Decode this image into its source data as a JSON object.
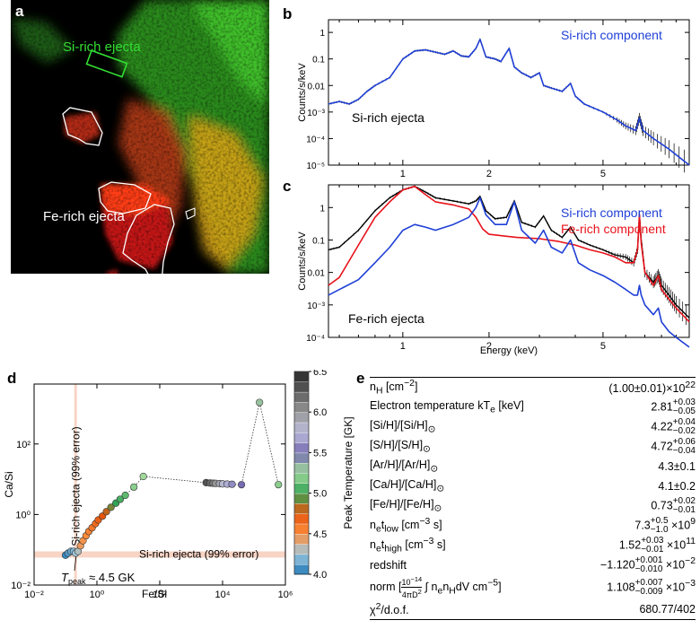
{
  "panel_a": {
    "letter": "a",
    "si_label": "Si-rich ejecta",
    "fe_label": "Fe-rich ejecta"
  },
  "panel_b": {
    "letter": "b",
    "ylabel": "Counts/s/keV",
    "region_label": "Si-rich ejecta",
    "legend": "Si-rich component",
    "yticks": [
      "1",
      "0.1",
      "0.01",
      "10⁻³",
      "10⁻⁴",
      "10⁻⁵"
    ],
    "xticks": [
      "1",
      "2",
      "5"
    ]
  },
  "panel_c": {
    "letter": "c",
    "ylabel": "Counts/s/keV",
    "xlabel": "Energy (keV)",
    "region_label": "Fe-rich ejecta",
    "legend_si": "Si-rich component",
    "legend_fe": "Fe-rich component",
    "yticks": [
      "1",
      "0.1",
      "0.01",
      "10⁻³",
      "10⁻⁴"
    ],
    "xticks": [
      "1",
      "2",
      "5"
    ]
  },
  "panel_d": {
    "letter": "d",
    "ylabel": "Ca/Si",
    "xlabel": "Fe/Si",
    "xticks": [
      "10⁻²",
      "10⁰",
      "10²",
      "10⁴",
      "10⁶"
    ],
    "yticks": [
      "10²",
      "10⁰",
      "10⁻²"
    ],
    "vertical_band_label": "Si-rich ejecta (99% error)",
    "horizontal_band_label": "Si-rich ejecta (99% error)",
    "tpeak_label": "T",
    "tpeak_sub": "peak",
    "tpeak_value": " ≈ 4.5 GK",
    "colorbar_label": "Peak Temperature [GK]",
    "colorbar_ticks": [
      "6.5",
      "6.0",
      "5.5",
      "5.0",
      "4.5",
      "4.0"
    ]
  },
  "panel_e": {
    "letter": "e",
    "rows": [
      {
        "param": "n_H [cm⁻²]",
        "value": "(1.00±0.01)×10²²"
      },
      {
        "param": "Electron temperature kT_e [keV]",
        "value": "2.81 +0.03 −0.05"
      },
      {
        "param": "[Si/H]/[Si/H]⊙",
        "value": "4.22 +0.04 −0.02"
      },
      {
        "param": "[S/H]/[S/H]⊙",
        "value": "4.72 +0.06 −0.04"
      },
      {
        "param": "[Ar/H]/[Ar/H]⊙",
        "value": "4.3±0.1"
      },
      {
        "param": "[Ca/H]/[Ca/H]⊙",
        "value": "4.1±0.2"
      },
      {
        "param": "[Fe/H]/[Fe/H]⊙",
        "value": "0.73 +0.02 −0.01"
      },
      {
        "param": "n_e t_low [cm⁻³ s]",
        "value": "7.3 +0.5 −1.0 ×10⁹"
      },
      {
        "param": "n_e t_high [cm⁻³ s]",
        "value": "1.52 +0.03 −0.01 ×10¹¹"
      },
      {
        "param": "redshift",
        "value": "−1.120 +0.001 −0.010 ×10⁻²"
      },
      {
        "param": "norm [10⁻¹⁴/4πD² ∫ n_e n_H dV cm⁻⁵]",
        "value": "1.108 +0.007 −0.009 ×10⁻³"
      },
      {
        "param": "χ²/d.o.f.",
        "value": "680.77/402"
      }
    ]
  },
  "colors": {
    "si_blue": "#1f3fd6",
    "fe_red": "#e8131b",
    "si_green": "#33dd33"
  },
  "chart_data": [
    {
      "type": "line",
      "title": "b",
      "xlabel": "",
      "ylabel": "Counts/s/keV",
      "xscale": "log",
      "yscale": "log",
      "xlim": [
        0.55,
        10
      ],
      "ylim": [
        1e-05,
        3
      ],
      "series": [
        {
          "name": "Si-rich component",
          "x": [
            0.55,
            0.6,
            0.65,
            0.7,
            0.75,
            0.8,
            0.9,
            1.0,
            1.1,
            1.2,
            1.3,
            1.4,
            1.5,
            1.6,
            1.7,
            1.8,
            1.86,
            1.95,
            2.1,
            2.2,
            2.35,
            2.45,
            2.6,
            2.8,
            3.0,
            3.1,
            3.3,
            3.6,
            3.85,
            4.0,
            4.3,
            5.0,
            5.6,
            6.0,
            6.5,
            6.7,
            6.9,
            7.5,
            8.5,
            10.0
          ],
          "y": [
            0.002,
            0.0025,
            0.002,
            0.003,
            0.006,
            0.01,
            0.02,
            0.1,
            0.2,
            0.22,
            0.18,
            0.15,
            0.2,
            0.13,
            0.12,
            0.25,
            0.55,
            0.12,
            0.1,
            0.08,
            0.25,
            0.05,
            0.03,
            0.02,
            0.03,
            0.01,
            0.008,
            0.006,
            0.012,
            0.004,
            0.002,
            0.001,
            0.0005,
            0.0003,
            0.0002,
            0.0006,
            0.0002,
            0.0001,
            4e-05,
            1e-05
          ]
        }
      ]
    },
    {
      "type": "line",
      "title": "c",
      "xlabel": "Energy (keV)",
      "ylabel": "Counts/s/keV",
      "xscale": "log",
      "yscale": "log",
      "xlim": [
        0.55,
        10
      ],
      "ylim": [
        0.0001,
        5
      ],
      "series": [
        {
          "name": "Total",
          "x": [
            0.55,
            0.6,
            0.7,
            0.8,
            0.9,
            1.0,
            1.1,
            1.2,
            1.3,
            1.5,
            1.7,
            1.8,
            1.86,
            1.95,
            2.1,
            2.3,
            2.45,
            2.6,
            2.9,
            3.1,
            3.3,
            3.6,
            3.85,
            4.1,
            4.5,
            5.0,
            5.5,
            6.0,
            6.4,
            6.6,
            6.7,
            6.8,
            7.0,
            7.5,
            7.8,
            8.0,
            8.5,
            9.0,
            10.0
          ],
          "y": [
            0.05,
            0.06,
            0.2,
            0.8,
            2.0,
            3.5,
            4.5,
            3.0,
            2.0,
            1.6,
            1.3,
            1.6,
            2.2,
            0.8,
            0.45,
            0.5,
            1.6,
            0.35,
            0.25,
            0.55,
            0.2,
            0.12,
            0.25,
            0.1,
            0.07,
            0.05,
            0.035,
            0.03,
            0.02,
            0.05,
            0.6,
            0.1,
            0.01,
            0.005,
            0.008,
            0.004,
            0.002,
            0.001,
            0.0004
          ]
        },
        {
          "name": "Si-rich component",
          "x": [
            0.55,
            0.7,
            0.8,
            0.9,
            1.0,
            1.1,
            1.2,
            1.3,
            1.5,
            1.7,
            1.8,
            1.86,
            1.95,
            2.1,
            2.3,
            2.45,
            2.6,
            2.9,
            3.1,
            3.3,
            3.6,
            3.85,
            4.1,
            4.5,
            5.0,
            5.5,
            6.0,
            6.4,
            6.6,
            6.7,
            6.8,
            7.0,
            7.5,
            7.8,
            8.0,
            8.5,
            9.0,
            10.0
          ],
          "y": [
            0.002,
            0.006,
            0.02,
            0.06,
            0.2,
            0.3,
            0.25,
            0.2,
            0.3,
            0.5,
            1.0,
            2.0,
            0.6,
            0.3,
            0.3,
            1.5,
            0.2,
            0.08,
            0.2,
            0.06,
            0.04,
            0.1,
            0.02,
            0.012,
            0.008,
            0.005,
            0.003,
            0.002,
            0.002,
            0.004,
            0.002,
            0.001,
            0.0005,
            0.0008,
            0.0003,
            0.00015,
            0.0001,
            5e-05
          ]
        },
        {
          "name": "Fe-rich component",
          "x": [
            0.55,
            0.6,
            0.7,
            0.8,
            0.9,
            1.0,
            1.1,
            1.2,
            1.3,
            1.5,
            1.7,
            1.8,
            1.9,
            2.0,
            2.3,
            2.5,
            3.0,
            3.5,
            4.0,
            4.5,
            5.0,
            5.5,
            6.0,
            6.4,
            6.6,
            6.7,
            6.8,
            7.0,
            7.5,
            7.8,
            8.0,
            8.5,
            9.0,
            10.0
          ],
          "y": [
            0.004,
            0.007,
            0.07,
            0.5,
            1.5,
            3.5,
            4.5,
            2.5,
            1.5,
            1.2,
            0.9,
            0.5,
            0.22,
            0.15,
            0.13,
            0.12,
            0.11,
            0.09,
            0.07,
            0.05,
            0.04,
            0.03,
            0.02,
            0.02,
            0.05,
            0.6,
            0.08,
            0.01,
            0.004,
            0.008,
            0.003,
            0.0015,
            0.0008,
            0.0003
          ]
        }
      ]
    },
    {
      "type": "scatter",
      "title": "d",
      "xlabel": "Fe/Si",
      "ylabel": "Ca/Si",
      "xscale": "log",
      "yscale": "log",
      "xlim": [
        0.01,
        1000000
      ],
      "ylim": [
        0.01,
        5000
      ],
      "colorbar": {
        "label": "Peak Temperature [GK]",
        "range": [
          4.0,
          6.5
        ]
      },
      "vertical_band_x": [
        0.19,
        0.23
      ],
      "horizontal_band_y": [
        0.06,
        0.09
      ],
      "series": [
        {
          "name": "models",
          "x": [
            0.1,
            0.12,
            0.15,
            0.18,
            0.21,
            0.25,
            0.3,
            0.36,
            0.45,
            0.55,
            0.7,
            0.9,
            1.1,
            1.5,
            2.0,
            2.8,
            4.0,
            5.5,
            8,
            15,
            30,
            3000,
            4000,
            5000,
            6000,
            8000,
            10000,
            14000,
            20000,
            40000,
            150000,
            600000
          ],
          "y": [
            0.07,
            0.08,
            0.09,
            0.09,
            0.08,
            0.09,
            0.13,
            0.18,
            0.25,
            0.33,
            0.42,
            0.55,
            0.7,
            0.9,
            1.2,
            1.6,
            2.1,
            2.7,
            3.5,
            6,
            12,
            8.0,
            7.8,
            7.7,
            7.6,
            7.5,
            7.4,
            7.3,
            7.2,
            7.0,
            1500,
            7.0
          ],
          "temperature": [
            4.05,
            4.1,
            4.15,
            4.2,
            4.25,
            4.3,
            4.45,
            4.48,
            4.5,
            4.55,
            4.6,
            4.65,
            4.7,
            4.75,
            4.8,
            4.9,
            5.0,
            5.05,
            5.1,
            5.2,
            5.25,
            6.3,
            6.2,
            6.1,
            6.0,
            5.9,
            5.8,
            5.7,
            5.6,
            5.5,
            5.3,
            5.2
          ]
        }
      ]
    }
  ]
}
